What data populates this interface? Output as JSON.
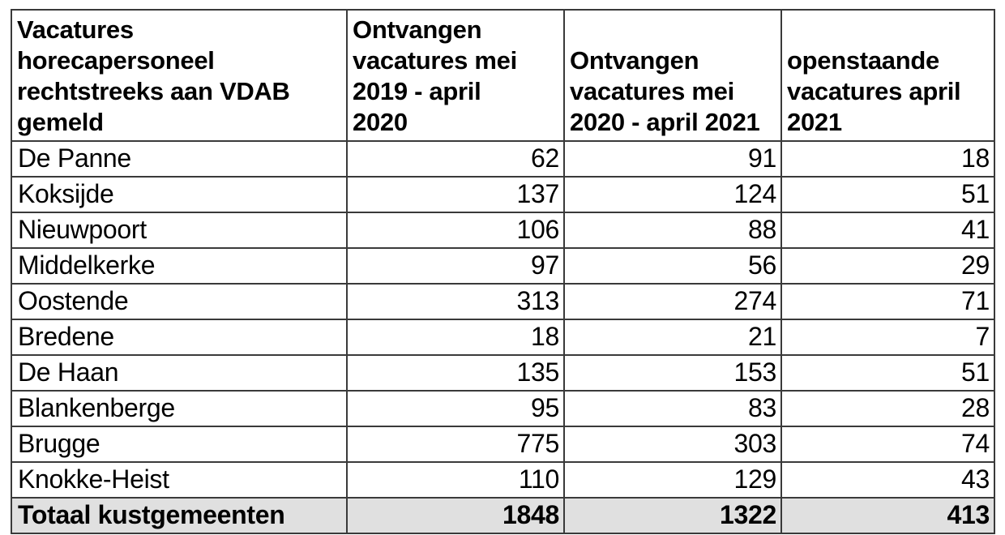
{
  "colors": {
    "border": "#3a3a3a",
    "total_row_bg": "#e0e0e0",
    "text": "#000000",
    "background": "#ffffff"
  },
  "table": {
    "header": {
      "col1": "Vacatures\nhorecapersoneel\nrechtstreeks aan VDAB\ngemeld",
      "col2": "Ontvangen\nvacatures mei\n2019 - april\n2020",
      "col3": "Ontvangen\nvacatures mei\n2020 - april 2021",
      "col4": "openstaande\nvacatures april\n2021"
    },
    "rows": [
      {
        "name": "De Panne",
        "v1": "62",
        "v2": "91",
        "v3": "18"
      },
      {
        "name": "Koksijde",
        "v1": "137",
        "v2": "124",
        "v3": "51"
      },
      {
        "name": "Nieuwpoort",
        "v1": "106",
        "v2": "88",
        "v3": "41"
      },
      {
        "name": "Middelkerke",
        "v1": "97",
        "v2": "56",
        "v3": "29"
      },
      {
        "name": "Oostende",
        "v1": "313",
        "v2": "274",
        "v3": "71"
      },
      {
        "name": "Bredene",
        "v1": "18",
        "v2": "21",
        "v3": "7"
      },
      {
        "name": "De Haan",
        "v1": "135",
        "v2": "153",
        "v3": "51"
      },
      {
        "name": "Blankenberge",
        "v1": "95",
        "v2": "83",
        "v3": "28"
      },
      {
        "name": "Brugge",
        "v1": "775",
        "v2": "303",
        "v3": "74"
      },
      {
        "name": "Knokke-Heist",
        "v1": "110",
        "v2": "129",
        "v3": "43"
      }
    ],
    "total": {
      "name": "Totaal kustgemeenten",
      "v1": "1848",
      "v2": "1322",
      "v3": "413"
    }
  },
  "chart_data": {
    "type": "table",
    "title": "Vacatures horecapersoneel rechtstreeks aan VDAB gemeld",
    "columns": [
      "Vacatures horecapersoneel rechtstreeks aan VDAB gemeld",
      "Ontvangen vacatures mei 2019 - april 2020",
      "Ontvangen vacatures mei 2020 - april 2021",
      "openstaande vacatures april 2021"
    ],
    "categories": [
      "De Panne",
      "Koksijde",
      "Nieuwpoort",
      "Middelkerke",
      "Oostende",
      "Bredene",
      "De Haan",
      "Blankenberge",
      "Brugge",
      "Knokke-Heist",
      "Totaal kustgemeenten"
    ],
    "series": [
      {
        "name": "Ontvangen vacatures mei 2019 - april 2020",
        "values": [
          62,
          137,
          106,
          97,
          313,
          18,
          135,
          95,
          775,
          110,
          1848
        ]
      },
      {
        "name": "Ontvangen vacatures mei 2020 - april 2021",
        "values": [
          91,
          124,
          88,
          56,
          274,
          21,
          153,
          83,
          303,
          129,
          1322
        ]
      },
      {
        "name": "openstaande vacatures april 2021",
        "values": [
          18,
          51,
          41,
          29,
          71,
          7,
          51,
          28,
          74,
          43,
          413
        ]
      }
    ]
  }
}
